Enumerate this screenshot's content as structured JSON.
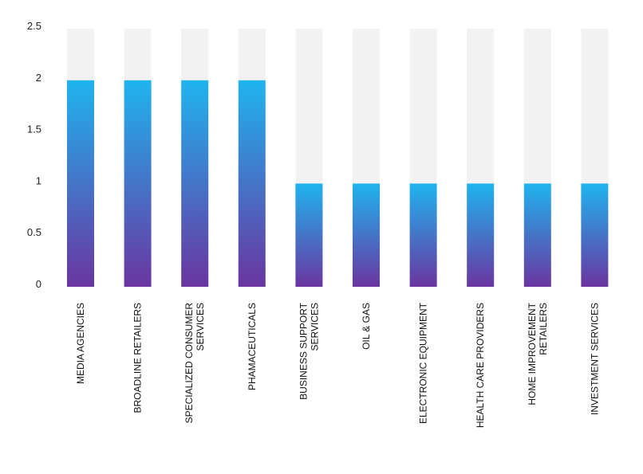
{
  "chart_data": {
    "type": "bar",
    "categories": [
      [
        "MEDIA AGENCIES"
      ],
      [
        "BROADLINE RETAILERS"
      ],
      [
        "SPECIALIZED CONSUMER",
        "SERVICES"
      ],
      [
        "PHAMACEUTICALS"
      ],
      [
        "BUSINESS SUPPORT",
        "SERVICES"
      ],
      [
        "OIL & GAS"
      ],
      [
        "ELECTRONIC EQUIPMENT"
      ],
      [
        "HEALTH CARE PROVIDERS"
      ],
      [
        "HOME IMPROVEMENT",
        "RETAILERS"
      ],
      [
        "INVESTMENT SERVICES"
      ]
    ],
    "values": [
      2,
      2,
      2,
      2,
      1,
      1,
      1,
      1,
      1,
      1
    ],
    "ylim": [
      0,
      2.5
    ],
    "yticks": [
      "0",
      "0.5",
      "1",
      "1.5",
      "2",
      "2.5"
    ],
    "background_bar_value": 2.5,
    "grid": false,
    "colors": {
      "bar_top": "#1fb4ee",
      "bar_bottom": "#6a35a0",
      "track": "#f2f2f2"
    }
  }
}
